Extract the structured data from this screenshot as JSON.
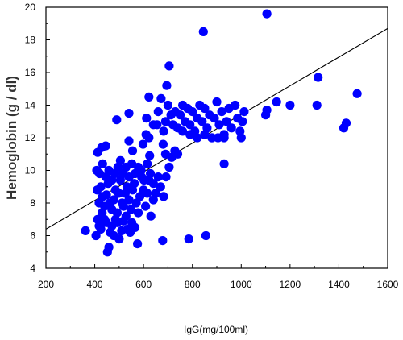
{
  "chart_data": {
    "type": "scatter",
    "title": "",
    "xlabel": "IgG(mg/100ml)",
    "ylabel": "Hemoglobin (g / dl)",
    "xlim": [
      200,
      1600
    ],
    "ylim": [
      4,
      20
    ],
    "x_ticks": [
      "200",
      "400",
      "600",
      "800",
      "1000",
      "1200",
      "1400",
      "1600"
    ],
    "y_ticks": [
      "4",
      "6",
      "8",
      "10",
      "12",
      "14",
      "16",
      "18",
      "20"
    ],
    "grid": false,
    "legend": "none",
    "marker_color": "#0000ff",
    "fit_line": {
      "x": [
        200,
        1600
      ],
      "y": [
        6.4,
        18.7
      ],
      "color": "#000000"
    },
    "points": [
      [
        362,
        6.3
      ],
      [
        405,
        6.0
      ],
      [
        412,
        7.0
      ],
      [
        418,
        6.6
      ],
      [
        425,
        6.4
      ],
      [
        430,
        7.4
      ],
      [
        440,
        7.0
      ],
      [
        448,
        6.8
      ],
      [
        452,
        5.0
      ],
      [
        458,
        5.3
      ],
      [
        463,
        6.2
      ],
      [
        470,
        6.6
      ],
      [
        478,
        6.0
      ],
      [
        485,
        7.0
      ],
      [
        492,
        6.8
      ],
      [
        500,
        5.8
      ],
      [
        510,
        6.3
      ],
      [
        518,
        6.9
      ],
      [
        528,
        7.2
      ],
      [
        535,
        6.4
      ],
      [
        545,
        6.2
      ],
      [
        552,
        6.8
      ],
      [
        565,
        6.5
      ],
      [
        575,
        5.5
      ],
      [
        410,
        8.8
      ],
      [
        418,
        8.0
      ],
      [
        425,
        9.0
      ],
      [
        432,
        8.4
      ],
      [
        440,
        7.8
      ],
      [
        448,
        8.5
      ],
      [
        455,
        9.2
      ],
      [
        462,
        8.0
      ],
      [
        470,
        7.6
      ],
      [
        478,
        8.2
      ],
      [
        485,
        8.8
      ],
      [
        492,
        7.4
      ],
      [
        498,
        8.6
      ],
      [
        505,
        9.4
      ],
      [
        512,
        8.0
      ],
      [
        518,
        7.8
      ],
      [
        525,
        8.6
      ],
      [
        532,
        9.0
      ],
      [
        540,
        8.2
      ],
      [
        548,
        7.6
      ],
      [
        555,
        8.8
      ],
      [
        562,
        9.2
      ],
      [
        570,
        8.0
      ],
      [
        578,
        7.4
      ],
      [
        585,
        8.4
      ],
      [
        592,
        9.6
      ],
      [
        600,
        8.8
      ],
      [
        608,
        7.8
      ],
      [
        615,
        8.6
      ],
      [
        622,
        9.4
      ],
      [
        630,
        7.2
      ],
      [
        640,
        8.2
      ],
      [
        408,
        10.0
      ],
      [
        420,
        9.8
      ],
      [
        432,
        10.4
      ],
      [
        445,
        9.6
      ],
      [
        458,
        10.0
      ],
      [
        470,
        9.4
      ],
      [
        482,
        9.8
      ],
      [
        495,
        10.2
      ],
      [
        505,
        10.6
      ],
      [
        515,
        9.8
      ],
      [
        528,
        10.2
      ],
      [
        540,
        9.6
      ],
      [
        552,
        10.4
      ],
      [
        565,
        9.8
      ],
      [
        578,
        10.2
      ],
      [
        590,
        10.0
      ],
      [
        602,
        9.4
      ],
      [
        615,
        10.4
      ],
      [
        628,
        9.8
      ],
      [
        640,
        9.2
      ],
      [
        650,
        8.6
      ],
      [
        660,
        9.6
      ],
      [
        670,
        9.0
      ],
      [
        682,
        8.4
      ],
      [
        692,
        9.6
      ],
      [
        705,
        10.2
      ],
      [
        715,
        10.8
      ],
      [
        728,
        11.2
      ],
      [
        740,
        11.0
      ],
      [
        412,
        11.1
      ],
      [
        428,
        11.4
      ],
      [
        445,
        11.5
      ],
      [
        490,
        13.1
      ],
      [
        540,
        13.5
      ],
      [
        540,
        11.8
      ],
      [
        555,
        11.2
      ],
      [
        598,
        11.6
      ],
      [
        610,
        12.2
      ],
      [
        622,
        12.0
      ],
      [
        625,
        10.9
      ],
      [
        655,
        12.8
      ],
      [
        680,
        11.6
      ],
      [
        690,
        11.0
      ],
      [
        612,
        13.2
      ],
      [
        622,
        14.5
      ],
      [
        640,
        12.8
      ],
      [
        660,
        13.6
      ],
      [
        672,
        14.4
      ],
      [
        682,
        12.4
      ],
      [
        690,
        13.0
      ],
      [
        695,
        15.2
      ],
      [
        700,
        14.0
      ],
      [
        705,
        16.4
      ],
      [
        712,
        13.4
      ],
      [
        720,
        12.8
      ],
      [
        730,
        13.6
      ],
      [
        740,
        12.6
      ],
      [
        750,
        13.4
      ],
      [
        760,
        14.0
      ],
      [
        770,
        13.0
      ],
      [
        780,
        13.8
      ],
      [
        790,
        12.8
      ],
      [
        800,
        13.6
      ],
      [
        810,
        12.4
      ],
      [
        820,
        13.2
      ],
      [
        830,
        14.0
      ],
      [
        840,
        13.0
      ],
      [
        850,
        13.8
      ],
      [
        860,
        12.6
      ],
      [
        870,
        13.4
      ],
      [
        880,
        12.0
      ],
      [
        890,
        13.2
      ],
      [
        900,
        14.2
      ],
      [
        910,
        12.8
      ],
      [
        920,
        13.6
      ],
      [
        930,
        12.2
      ],
      [
        940,
        13.0
      ],
      [
        950,
        13.8
      ],
      [
        960,
        12.6
      ],
      [
        975,
        14.0
      ],
      [
        985,
        13.2
      ],
      [
        995,
        12.4
      ],
      [
        1005,
        13.0
      ],
      [
        1012,
        13.6
      ],
      [
        1000,
        12.0
      ],
      [
        760,
        12.4
      ],
      [
        790,
        12.2
      ],
      [
        820,
        12.0
      ],
      [
        850,
        12.2
      ],
      [
        880,
        12.0
      ],
      [
        905,
        12.0
      ],
      [
        930,
        12.0
      ],
      [
        930,
        10.4
      ],
      [
        1100,
        13.4
      ],
      [
        1105,
        13.7
      ],
      [
        1145,
        14.2
      ],
      [
        1200,
        14.0
      ],
      [
        1310,
        14.0
      ],
      [
        1315,
        15.7
      ],
      [
        1420,
        12.6
      ],
      [
        1430,
        12.9
      ],
      [
        1475,
        14.7
      ],
      [
        1105,
        19.6
      ],
      [
        845,
        18.5
      ],
      [
        678,
        5.7
      ],
      [
        785,
        5.8
      ],
      [
        855,
        6.0
      ]
    ]
  }
}
